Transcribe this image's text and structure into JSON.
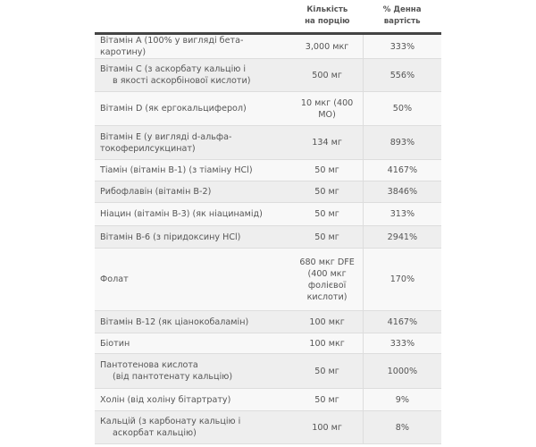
{
  "table": {
    "headers": {
      "name": "",
      "amount": "Кількість на порцію",
      "dv": "% Денна вартість"
    },
    "rows": [
      {
        "name": "Вітамін A (100% у вигляді бета-каротину)",
        "name2": "",
        "amount": "3,000 мкг",
        "dv": "333%"
      },
      {
        "name": "Вітамін C (з аскорбату кальцію і",
        "name2": "в якості аскорбінової кислоти)",
        "amount": "500 мг",
        "dv": "556%"
      },
      {
        "name": "Вітамін D (як ергокальциферол)",
        "name2": "",
        "amount": "10 мкг (400 МО)",
        "dv": "50%"
      },
      {
        "name": "Вітамін E (у вигляді d-альфа-токоферилсукцинат)",
        "name2": "",
        "amount": "134 мг",
        "dv": "893%"
      },
      {
        "name": "Тіамін (вітамін B-1) (з тіаміну HCl)",
        "name2": "",
        "amount": "50 мг",
        "dv": "4167%"
      },
      {
        "name": "Рибофлавін (вітамін B-2)",
        "name2": "",
        "amount": "50 мг",
        "dv": "3846%"
      },
      {
        "name": "Ніацин (вітамін B-3) (як ніацинамід)",
        "name2": "",
        "amount": "50 мг",
        "dv": "313%"
      },
      {
        "name": "Вітамін B-6 (з піридоксину HCl)",
        "name2": "",
        "amount": "50 мг",
        "dv": "2941%"
      },
      {
        "name": "Фолат",
        "name2": "",
        "amount": "680 мкг DFE (400 мкг фолієвої кислоти)",
        "dv": "170%"
      },
      {
        "name": "Вітамін B-12 (як ціанокобаламін)",
        "name2": "",
        "amount": "100 мкг",
        "dv": "4167%"
      },
      {
        "name": "Біотин",
        "name2": "",
        "amount": "100 мкг",
        "dv": "333%"
      },
      {
        "name": "Пантотенова кислота",
        "name2": "(від пантотенату кальцію)",
        "amount": "50 мг",
        "dv": "1000%"
      },
      {
        "name": "Холін (від холіну бітартрату)",
        "name2": "",
        "amount": "50 мг",
        "dv": "9%"
      },
      {
        "name": "Кальцій (з карбонату кальцію і",
        "name2": "аскорбат кальцію)",
        "amount": "100 мг",
        "dv": "8%"
      }
    ]
  }
}
